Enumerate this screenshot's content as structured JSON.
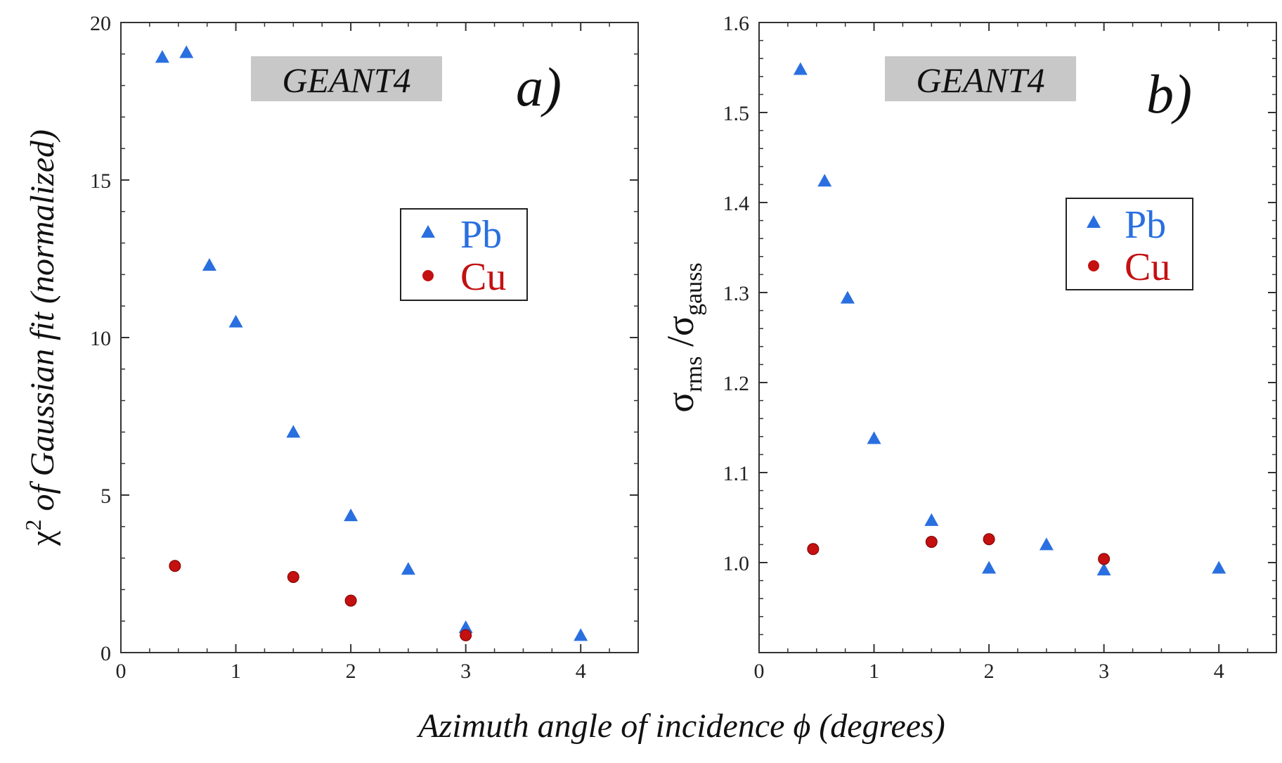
{
  "shared_xlabel": "Azimuth angle of incidence ϕ (degrees)",
  "chart_data": [
    {
      "type": "scatter",
      "panel_label": "a)",
      "tag": "GEANT4",
      "ylabel_prefix": "χ",
      "ylabel_sup": "2",
      "ylabel_rest": " of Gaussian fit (normalized)",
      "xlim": [
        0,
        4.5
      ],
      "ylim": [
        0,
        20
      ],
      "xticks": [
        0,
        1,
        2,
        3,
        4
      ],
      "yticks": [
        0,
        5,
        10,
        15,
        20
      ],
      "ytick_labels": [
        "0",
        "5",
        "10",
        "15",
        "20"
      ],
      "grid": false,
      "legend_position": "center-right",
      "series": [
        {
          "name": "Pb",
          "marker": "triangle",
          "color": "#2a6fe0",
          "points": [
            [
              0.36,
              18.9
            ],
            [
              0.57,
              19.05
            ],
            [
              0.77,
              12.3
            ],
            [
              1.0,
              10.5
            ],
            [
              1.5,
              7.0
            ],
            [
              2.0,
              4.35
            ],
            [
              2.5,
              2.65
            ],
            [
              3.0,
              0.8
            ],
            [
              4.0,
              0.55
            ]
          ]
        },
        {
          "name": "Cu",
          "marker": "circle",
          "color": "#c41010",
          "points": [
            [
              0.47,
              2.75
            ],
            [
              1.5,
              2.4
            ],
            [
              2.0,
              1.65
            ],
            [
              3.0,
              0.55
            ]
          ]
        }
      ]
    },
    {
      "type": "scatter",
      "panel_label": "b)",
      "tag": "GEANT4",
      "ylabel_num": "σ",
      "ylabel_num_sub": "rms",
      "ylabel_sep": " /",
      "ylabel_den": "σ",
      "ylabel_den_sub": "gauss",
      "xlim": [
        0,
        4.5
      ],
      "ylim": [
        0.9,
        1.6
      ],
      "xticks": [
        0,
        1,
        2,
        3,
        4
      ],
      "yticks": [
        1.0,
        1.1,
        1.2,
        1.3,
        1.4,
        1.5,
        1.6
      ],
      "ytick_labels": [
        "1.0",
        "1.1",
        "1.2",
        "1.3",
        "1.4",
        "1.5",
        "1.6"
      ],
      "grid": false,
      "legend_position": "top-right",
      "series": [
        {
          "name": "Pb",
          "marker": "triangle",
          "color": "#2a6fe0",
          "points": [
            [
              0.36,
              1.548
            ],
            [
              0.57,
              1.424
            ],
            [
              0.77,
              1.294
            ],
            [
              1.0,
              1.138
            ],
            [
              1.5,
              1.047
            ],
            [
              2.0,
              0.994
            ],
            [
              2.5,
              1.02
            ],
            [
              3.0,
              0.992
            ],
            [
              4.0,
              0.994
            ]
          ]
        },
        {
          "name": "Cu",
          "marker": "circle",
          "color": "#c41010",
          "points": [
            [
              0.47,
              1.015
            ],
            [
              1.5,
              1.023
            ],
            [
              2.0,
              1.026
            ],
            [
              3.0,
              1.004
            ]
          ]
        }
      ]
    }
  ]
}
